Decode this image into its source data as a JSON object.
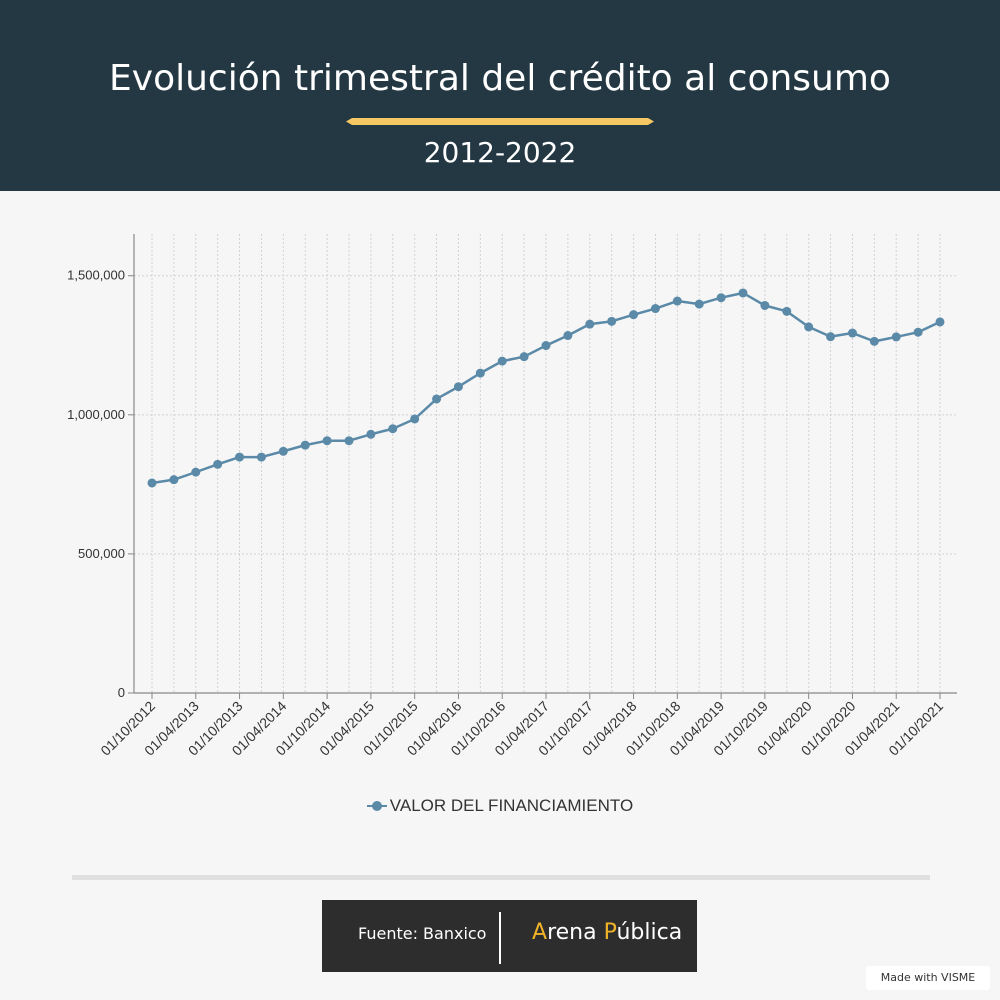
{
  "header": {
    "title": "Evolución trimestral del crédito al consumo",
    "subtitle": "2012-2022",
    "accent_color": "#f5c863"
  },
  "chart_data": {
    "type": "line",
    "title": "Evolución trimestral del crédito al consumo",
    "subtitle": "2012-2022",
    "xlabel": "",
    "ylabel": "",
    "categories": [
      "01/10/2012",
      "01/01/2013",
      "01/04/2013",
      "01/07/2013",
      "01/10/2013",
      "01/01/2014",
      "01/04/2014",
      "01/07/2014",
      "01/10/2014",
      "01/01/2015",
      "01/04/2015",
      "01/07/2015",
      "01/10/2015",
      "01/01/2016",
      "01/04/2016",
      "01/07/2016",
      "01/10/2016",
      "01/01/2017",
      "01/04/2017",
      "01/07/2017",
      "01/10/2017",
      "01/01/2018",
      "01/04/2018",
      "01/07/2018",
      "01/10/2018",
      "01/01/2019",
      "01/04/2019",
      "01/07/2019",
      "01/10/2019",
      "01/01/2020",
      "01/04/2020",
      "01/07/2020",
      "01/10/2020",
      "01/01/2021",
      "01/04/2021",
      "01/07/2021",
      "01/10/2021"
    ],
    "tick_labels": [
      "01/10/2012",
      "01/04/2013",
      "01/10/2013",
      "01/04/2014",
      "01/10/2014",
      "01/04/2015",
      "01/10/2015",
      "01/04/2016",
      "01/10/2016",
      "01/04/2017",
      "01/10/2017",
      "01/04/2018",
      "01/10/2018",
      "01/04/2019",
      "01/10/2019",
      "01/04/2020",
      "01/10/2020",
      "01/04/2021",
      "01/10/2021"
    ],
    "series": [
      {
        "name": "VALOR DEL FINANCIAMIENTO",
        "color": "#5b8aa8",
        "values": [
          755000,
          767000,
          794000,
          822000,
          848000,
          848000,
          869000,
          891000,
          907000,
          907000,
          930000,
          950000,
          985000,
          1057000,
          1101000,
          1150000,
          1193000,
          1209000,
          1249000,
          1285000,
          1326000,
          1336000,
          1360000,
          1382000,
          1409000,
          1398000,
          1421000,
          1438000,
          1393000,
          1372000,
          1316000,
          1281000,
          1294000,
          1264000,
          1280000,
          1297000,
          1334000
        ]
      }
    ],
    "ylim": [
      0,
      1650000
    ],
    "yticks": [
      0,
      500000,
      1000000,
      1500000
    ],
    "ytick_labels": [
      "0",
      "500,000",
      "1,000,000",
      "1,500,000"
    ],
    "grid": true,
    "legend": "bottom-center"
  },
  "legend": {
    "label": "VALOR DEL FINANCIAMIENTO"
  },
  "footer": {
    "source": "Fuente: Banxico",
    "brand_part1": "A",
    "brand_part2": "rena ",
    "brand_part3": "P",
    "brand_part4": "ública",
    "brand_accent_color": "#f0b429",
    "made_with": "Made with VISME"
  }
}
